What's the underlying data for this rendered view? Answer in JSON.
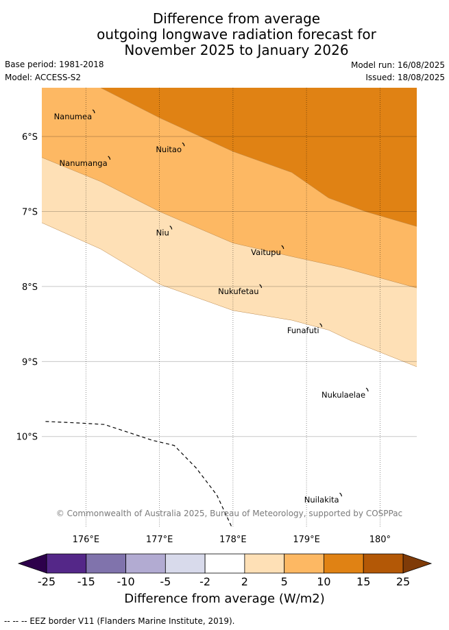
{
  "title": {
    "line1": "Difference from average",
    "line2": "outgoing longwave radiation forecast for",
    "line3": "November 2025 to January 2026"
  },
  "meta": {
    "base_period": "Base period: 1981-2018",
    "model": "Model: ACCESS-S2",
    "model_run": "Model run: 16/08/2025",
    "issued": "Issued: 18/08/2025"
  },
  "map": {
    "lon_range": [
      175.4,
      180.5
    ],
    "lat_range": [
      -11.2,
      -5.35
    ],
    "lon_ticks": [
      {
        "value": 176,
        "label": "176°E"
      },
      {
        "value": 177,
        "label": "177°E"
      },
      {
        "value": 178,
        "label": "178°E"
      },
      {
        "value": 179,
        "label": "179°E"
      },
      {
        "value": 180,
        "label": "180°"
      }
    ],
    "lat_ticks": [
      {
        "value": -6,
        "label": "6°S"
      },
      {
        "value": -7,
        "label": "7°S"
      },
      {
        "value": -8,
        "label": "8°S"
      },
      {
        "value": -9,
        "label": "9°S"
      },
      {
        "value": -10,
        "label": "10°S"
      }
    ],
    "islands": [
      {
        "name": "Nanumea",
        "lon": 176.11,
        "lat": -5.67
      },
      {
        "name": "Nuitao",
        "lon": 177.33,
        "lat": -6.11
      },
      {
        "name": "Nanumanga",
        "lon": 176.32,
        "lat": -6.29
      },
      {
        "name": "Niu",
        "lon": 177.16,
        "lat": -7.22
      },
      {
        "name": "Vaitupu",
        "lon": 178.68,
        "lat": -7.48
      },
      {
        "name": "Nukufetau",
        "lon": 178.38,
        "lat": -8.0
      },
      {
        "name": "Funafuti",
        "lon": 179.2,
        "lat": -8.52
      },
      {
        "name": "Nukulaelae",
        "lon": 179.83,
        "lat": -9.38
      },
      {
        "name": "Nuilakita",
        "lon": 179.47,
        "lat": -10.78
      }
    ],
    "contours": [
      {
        "level": "10 to 15",
        "color": "#e08214",
        "boundary": [
          [
            176.2,
            -5.35
          ],
          [
            177.0,
            -5.75
          ],
          [
            178.0,
            -6.2
          ],
          [
            178.8,
            -6.48
          ],
          [
            179.3,
            -6.82
          ],
          [
            179.8,
            -7.0
          ],
          [
            180.5,
            -7.2
          ]
        ]
      },
      {
        "level": "5 to 10",
        "color": "#fdb863",
        "boundary": [
          [
            175.4,
            -6.28
          ],
          [
            176.2,
            -6.6
          ],
          [
            177.0,
            -7.0
          ],
          [
            178.0,
            -7.42
          ],
          [
            178.8,
            -7.6
          ],
          [
            179.5,
            -7.75
          ],
          [
            180.5,
            -8.02
          ]
        ]
      },
      {
        "level": "2 to 5",
        "color": "#fee0b6",
        "boundary": [
          [
            175.4,
            -7.15
          ],
          [
            176.2,
            -7.5
          ],
          [
            177.0,
            -7.97
          ],
          [
            178.0,
            -8.32
          ],
          [
            178.8,
            -8.45
          ],
          [
            179.3,
            -8.58
          ],
          [
            179.6,
            -8.72
          ],
          [
            180.5,
            -9.07
          ]
        ]
      }
    ],
    "eez_border": [
      [
        175.45,
        -9.8
      ],
      [
        175.9,
        -9.82
      ],
      [
        176.25,
        -9.84
      ],
      [
        176.5,
        -9.92
      ],
      [
        176.9,
        -10.05
      ],
      [
        177.2,
        -10.12
      ],
      [
        177.5,
        -10.42
      ],
      [
        177.78,
        -10.78
      ],
      [
        177.98,
        -11.2
      ]
    ],
    "copyright": "© Commonwealth of Australia 2025, Bureau of Meteorology, supported by COSPPac"
  },
  "colorbar": {
    "labels": [
      "-25",
      "-15",
      "-10",
      "-5",
      "-2",
      "2",
      "5",
      "10",
      "15",
      "25"
    ],
    "colors": [
      "#542788",
      "#8073ac",
      "#b2abd2",
      "#d8daeb",
      "#ffffff",
      "#fee0b6",
      "#fdb863",
      "#e08214",
      "#b35806"
    ],
    "extend_low": "#2d004b",
    "extend_high": "#7f3b08",
    "label": "Difference from average (W/m2)"
  },
  "footnote": "--  --  -- EEZ border V11 (Flanders Marine Institute, 2019)."
}
